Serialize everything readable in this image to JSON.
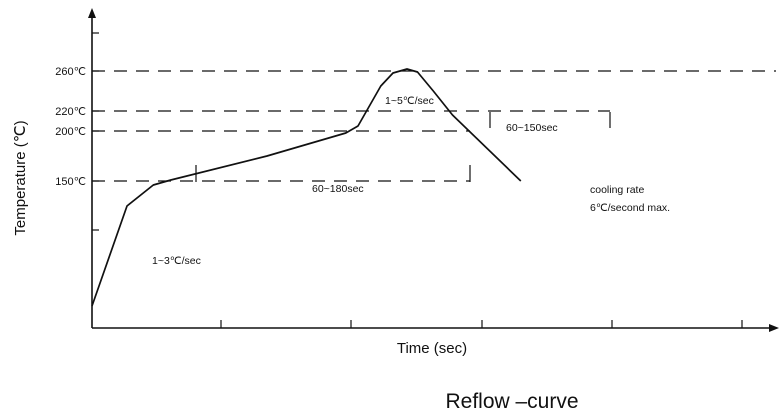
{
  "chart_data": {
    "type": "line",
    "title": "Reflow –curve",
    "xlabel": "Time (sec)",
    "ylabel": "Temperature (℃)",
    "y_ticks": [
      {
        "value": 150,
        "label": "150℃"
      },
      {
        "value": 200,
        "label": "200℃"
      },
      {
        "value": 220,
        "label": "220℃"
      },
      {
        "value": 260,
        "label": "260℃"
      }
    ],
    "reference_lines_y": [
      150,
      200,
      220,
      260
    ],
    "series": [
      {
        "points": [
          {
            "t": 0,
            "temp": 25
          },
          {
            "t": 20,
            "temp": 125
          },
          {
            "t": 35,
            "temp": 146
          },
          {
            "t": 45,
            "temp": 151
          },
          {
            "t": 100,
            "temp": 175
          },
          {
            "t": 145,
            "temp": 198
          },
          {
            "t": 152,
            "temp": 205
          },
          {
            "t": 165,
            "temp": 245
          },
          {
            "t": 172,
            "temp": 258
          },
          {
            "t": 180,
            "temp": 262
          },
          {
            "t": 186,
            "temp": 259
          },
          {
            "t": 195,
            "temp": 240
          },
          {
            "t": 206,
            "temp": 216
          },
          {
            "t": 245,
            "temp": 150
          }
        ]
      }
    ],
    "annotations": [
      {
        "text": "1~3℃/sec"
      },
      {
        "text": "60~180sec"
      },
      {
        "text": "1~5℃/sec"
      },
      {
        "text": "60~150sec"
      },
      {
        "text": "cooling rate"
      },
      {
        "text": "6℃/second max."
      }
    ]
  }
}
